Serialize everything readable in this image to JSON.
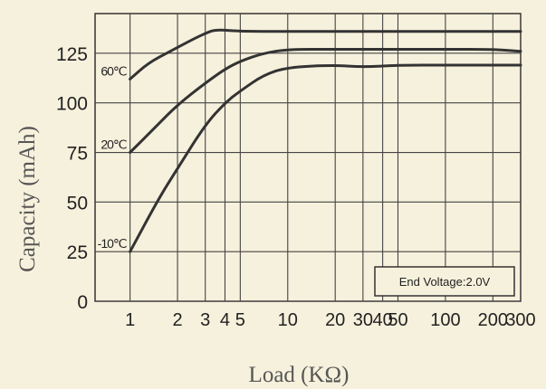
{
  "chart_data": {
    "type": "line",
    "title": "",
    "xlabel": "Load (KΩ)",
    "ylabel": "Capacity (mAh)",
    "x_scale": "log",
    "xlim": [
      0.6,
      300
    ],
    "ylim": [
      0,
      145
    ],
    "grid": true,
    "x_ticks": [
      {
        "value": 1,
        "label": "1"
      },
      {
        "value": 2,
        "label": "2"
      },
      {
        "value": 3,
        "label": "3"
      },
      {
        "value": 4,
        "label": "4"
      },
      {
        "value": 5,
        "label": "5"
      },
      {
        "value": 10,
        "label": "10"
      },
      {
        "value": 20,
        "label": "20"
      },
      {
        "value": 30,
        "label": "30"
      },
      {
        "value": 40,
        "label": "40"
      },
      {
        "value": 50,
        "label": "50"
      },
      {
        "value": 100,
        "label": "100"
      },
      {
        "value": 200,
        "label": "200"
      },
      {
        "value": 300,
        "label": "300"
      }
    ],
    "y_ticks": [
      0,
      25,
      50,
      75,
      100,
      125
    ],
    "annotation": "End Voltage:2.0V",
    "annotation_position": "bottom-right",
    "series": [
      {
        "name": "60℃",
        "color": "#333333",
        "points": [
          [
            1,
            112
          ],
          [
            1.3,
            120
          ],
          [
            1.8,
            126
          ],
          [
            2.5,
            132
          ],
          [
            3,
            135
          ],
          [
            3.5,
            137
          ],
          [
            5,
            136
          ],
          [
            10,
            136
          ],
          [
            20,
            136
          ],
          [
            50,
            136
          ],
          [
            100,
            136
          ],
          [
            200,
            136
          ],
          [
            300,
            136
          ]
        ]
      },
      {
        "name": "20℃",
        "color": "#333333",
        "points": [
          [
            1,
            75
          ],
          [
            1.5,
            89
          ],
          [
            2,
            99
          ],
          [
            3,
            110
          ],
          [
            4,
            117
          ],
          [
            5,
            121
          ],
          [
            7,
            125
          ],
          [
            10,
            127
          ],
          [
            20,
            127
          ],
          [
            50,
            127
          ],
          [
            100,
            127
          ],
          [
            200,
            127
          ],
          [
            300,
            126
          ]
        ]
      },
      {
        "name": "-10℃",
        "color": "#333333",
        "points": [
          [
            1,
            25
          ],
          [
            1.5,
            51
          ],
          [
            2,
            67
          ],
          [
            3,
            89
          ],
          [
            4,
            100
          ],
          [
            5,
            106
          ],
          [
            7,
            114
          ],
          [
            10,
            118
          ],
          [
            20,
            119
          ],
          [
            30,
            118
          ],
          [
            50,
            119
          ],
          [
            100,
            119
          ],
          [
            200,
            119
          ],
          [
            300,
            119
          ]
        ]
      }
    ]
  }
}
